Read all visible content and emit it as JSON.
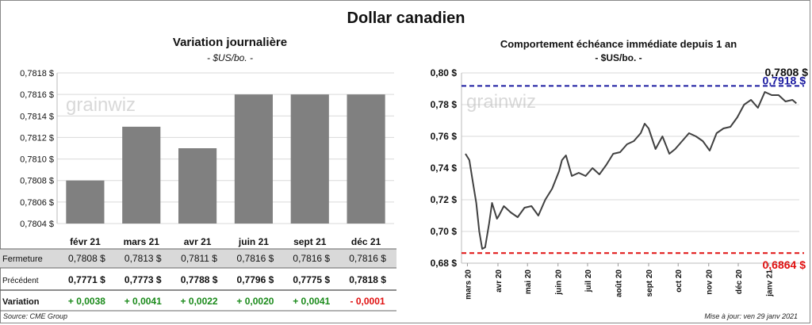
{
  "title": "Dollar canadien",
  "watermark": "grainwiz",
  "left_chart": {
    "title": "Variation  journalière",
    "subtitle": "- $US/bo. -",
    "table": {
      "rows": [
        {
          "label": "Fermeture",
          "values": [
            "0,7808  $",
            "0,7813  $",
            "0,7811  $",
            "0,7816  $",
            "0,7816  $",
            "0,7816  $"
          ]
        },
        {
          "label": "Précédent",
          "values": [
            "0,7771  $",
            "0,7773  $",
            "0,7788  $",
            "0,7796  $",
            "0,7775  $",
            "0,7818  $"
          ]
        },
        {
          "label": "Variation",
          "values": [
            "+ 0,0038",
            "+ 0,0041",
            "+ 0,0022",
            "+ 0,0020",
            "+ 0,0041",
            "- 0,0001"
          ]
        }
      ],
      "variation_colors": [
        "#1a8a1a",
        "#1a8a1a",
        "#1a8a1a",
        "#1a8a1a",
        "#1a8a1a",
        "#e01010"
      ]
    }
  },
  "right_chart": {
    "title": "Comportement échéance immédiate depuis 1 an",
    "subtitle": "- $US/bo. -",
    "max_label": "0,7918 $",
    "last_label": "0,7808 $",
    "min_label": "0,6864 $"
  },
  "source": "Source: CME Group",
  "update": "Mise à jour: ven 29 janv 2021",
  "chart_data": [
    {
      "type": "bar",
      "title": "Variation  journalière",
      "subtitle": "- $US/bo. -",
      "categories": [
        "févr 21",
        "mars 21",
        "avr 21",
        "juin 21",
        "sept 21",
        "déc 21"
      ],
      "values": [
        0.7808,
        0.7813,
        0.7811,
        0.7816,
        0.7816,
        0.7816
      ],
      "ylim": [
        0.7804,
        0.7818
      ],
      "yticks": [
        "0,7804 $",
        "0,7806 $",
        "0,7808 $",
        "0,7810 $",
        "0,7812 $",
        "0,7814 $",
        "0,7816 $",
        "0,7818 $"
      ],
      "color": "#808080",
      "grid": true
    },
    {
      "type": "line",
      "title": "Comportement échéance immédiate depuis 1 an",
      "subtitle": "- $US/bo. -",
      "x": [
        "2020-02-28",
        "2020-03-03",
        "2020-03-06",
        "2020-03-10",
        "2020-03-13",
        "2020-03-16",
        "2020-03-19",
        "2020-03-23",
        "2020-03-26",
        "2020-03-31",
        "2020-04-02",
        "2020-04-07",
        "2020-04-14",
        "2020-04-21",
        "2020-04-28",
        "2020-05-05",
        "2020-05-12",
        "2020-05-19",
        "2020-05-26",
        "2020-06-02",
        "2020-06-05",
        "2020-06-09",
        "2020-06-15",
        "2020-06-22",
        "2020-06-29",
        "2020-07-06",
        "2020-07-13",
        "2020-07-20",
        "2020-07-27",
        "2020-08-03",
        "2020-08-10",
        "2020-08-17",
        "2020-08-24",
        "2020-08-28",
        "2020-09-01",
        "2020-09-08",
        "2020-09-15",
        "2020-09-22",
        "2020-09-28",
        "2020-10-05",
        "2020-10-12",
        "2020-10-19",
        "2020-10-26",
        "2020-11-02",
        "2020-11-09",
        "2020-11-16",
        "2020-11-23",
        "2020-11-30",
        "2020-12-07",
        "2020-12-14",
        "2020-12-21",
        "2020-12-28",
        "2021-01-04",
        "2021-01-11",
        "2021-01-18",
        "2021-01-25",
        "2021-01-29"
      ],
      "y": [
        0.749,
        0.745,
        0.733,
        0.718,
        0.7,
        0.689,
        0.69,
        0.705,
        0.718,
        0.708,
        0.71,
        0.716,
        0.712,
        0.709,
        0.715,
        0.716,
        0.71,
        0.72,
        0.727,
        0.738,
        0.745,
        0.748,
        0.735,
        0.737,
        0.735,
        0.74,
        0.736,
        0.742,
        0.749,
        0.75,
        0.755,
        0.757,
        0.762,
        0.768,
        0.765,
        0.752,
        0.76,
        0.749,
        0.752,
        0.757,
        0.762,
        0.76,
        0.757,
        0.751,
        0.762,
        0.765,
        0.766,
        0.772,
        0.78,
        0.783,
        0.778,
        0.788,
        0.786,
        0.786,
        0.782,
        0.783,
        0.7808
      ],
      "ylim": [
        0.68,
        0.8
      ],
      "yticks": [
        "0,68 $",
        "0,70 $",
        "0,72 $",
        "0,74 $",
        "0,76 $",
        "0,78 $",
        "0,80 $"
      ],
      "xticks": [
        "mars 20",
        "avr 20",
        "mai 20",
        "juin 20",
        "juil 20",
        "août 20",
        "sept 20",
        "oct 20",
        "nov 20",
        "déc 20",
        "janv 21"
      ],
      "max": 0.7918,
      "min": 0.6864,
      "last": 0.7808,
      "line_color": "#404040",
      "max_color": "#1a1aa0",
      "min_color": "#e01010",
      "grid": true
    }
  ]
}
